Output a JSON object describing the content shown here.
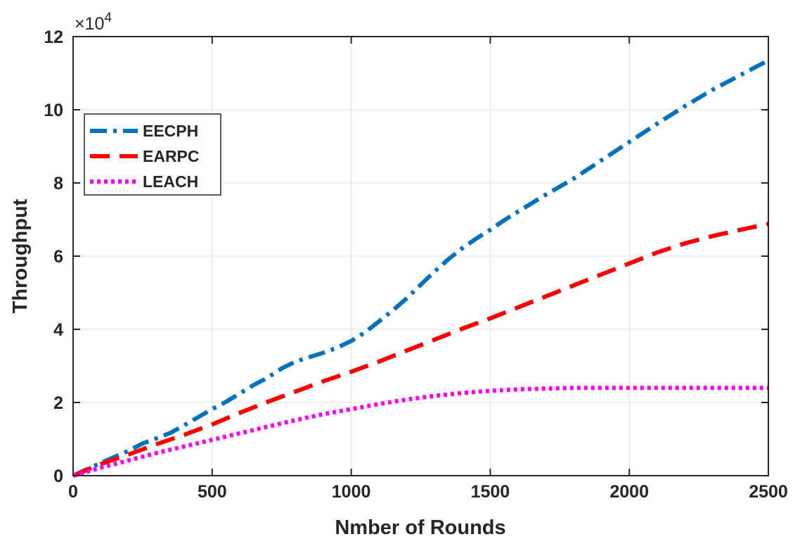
{
  "chart_data": {
    "type": "line",
    "title": "",
    "xlabel": "Nmber of Rounds",
    "ylabel": "Throughput",
    "y_multiplier_text": "×10",
    "y_multiplier_exp": "4",
    "xlim": [
      0,
      2500
    ],
    "ylim": [
      0,
      12
    ],
    "xticks": [
      0,
      500,
      1000,
      1500,
      2000,
      2500
    ],
    "yticks": [
      0,
      2,
      4,
      6,
      8,
      10,
      12
    ],
    "xtick_labels": [
      "0",
      "500",
      "1000",
      "1500",
      "2000",
      "2500"
    ],
    "ytick_labels": [
      "0",
      "2",
      "4",
      "6",
      "8",
      "10",
      "12"
    ],
    "grid": true,
    "legend_position": "upper-left",
    "series": [
      {
        "name": "EECPH",
        "color": "#0072BD",
        "style": "dash-dot",
        "x": [
          0,
          100,
          200,
          250,
          300,
          350,
          400,
          450,
          500,
          550,
          600,
          650,
          700,
          750,
          800,
          850,
          900,
          950,
          1000,
          1050,
          1100,
          1150,
          1200,
          1250,
          1300,
          1350,
          1400,
          1450,
          1500,
          1550,
          1600,
          1700,
          1800,
          1900,
          2000,
          2100,
          2200,
          2300,
          2400,
          2500
        ],
        "y": [
          0,
          0.35,
          0.68,
          0.88,
          1.02,
          1.17,
          1.38,
          1.6,
          1.82,
          2.02,
          2.25,
          2.48,
          2.68,
          2.93,
          3.12,
          3.24,
          3.36,
          3.5,
          3.68,
          3.92,
          4.22,
          4.52,
          4.85,
          5.22,
          5.58,
          5.92,
          6.22,
          6.48,
          6.72,
          6.98,
          7.22,
          7.68,
          8.12,
          8.62,
          9.12,
          9.62,
          10.1,
          10.55,
          10.95,
          11.35
        ]
      },
      {
        "name": "EARPC",
        "color": "#FF0000",
        "style": "dashed",
        "x": [
          0,
          100,
          200,
          300,
          400,
          500,
          600,
          700,
          800,
          900,
          1000,
          1100,
          1200,
          1300,
          1400,
          1500,
          1600,
          1700,
          1800,
          1900,
          2000,
          2100,
          2200,
          2300,
          2400,
          2500
        ],
        "y": [
          0,
          0.32,
          0.58,
          0.86,
          1.12,
          1.4,
          1.72,
          2.02,
          2.3,
          2.58,
          2.84,
          3.12,
          3.42,
          3.72,
          4.02,
          4.3,
          4.6,
          4.9,
          5.2,
          5.5,
          5.8,
          6.1,
          6.35,
          6.55,
          6.72,
          6.88
        ]
      },
      {
        "name": "LEACH",
        "color": "#FF00FF",
        "style": "dotted",
        "x": [
          0,
          100,
          200,
          300,
          400,
          500,
          600,
          700,
          800,
          900,
          1000,
          1100,
          1200,
          1300,
          1400,
          1500,
          1600,
          1700,
          1800,
          1900,
          2000,
          2100,
          2200,
          2300,
          2400,
          2500
        ],
        "y": [
          0,
          0.22,
          0.42,
          0.62,
          0.8,
          0.98,
          1.16,
          1.34,
          1.52,
          1.68,
          1.82,
          1.96,
          2.08,
          2.18,
          2.26,
          2.32,
          2.36,
          2.38,
          2.4,
          2.4,
          2.4,
          2.4,
          2.4,
          2.4,
          2.4,
          2.4
        ]
      }
    ]
  }
}
